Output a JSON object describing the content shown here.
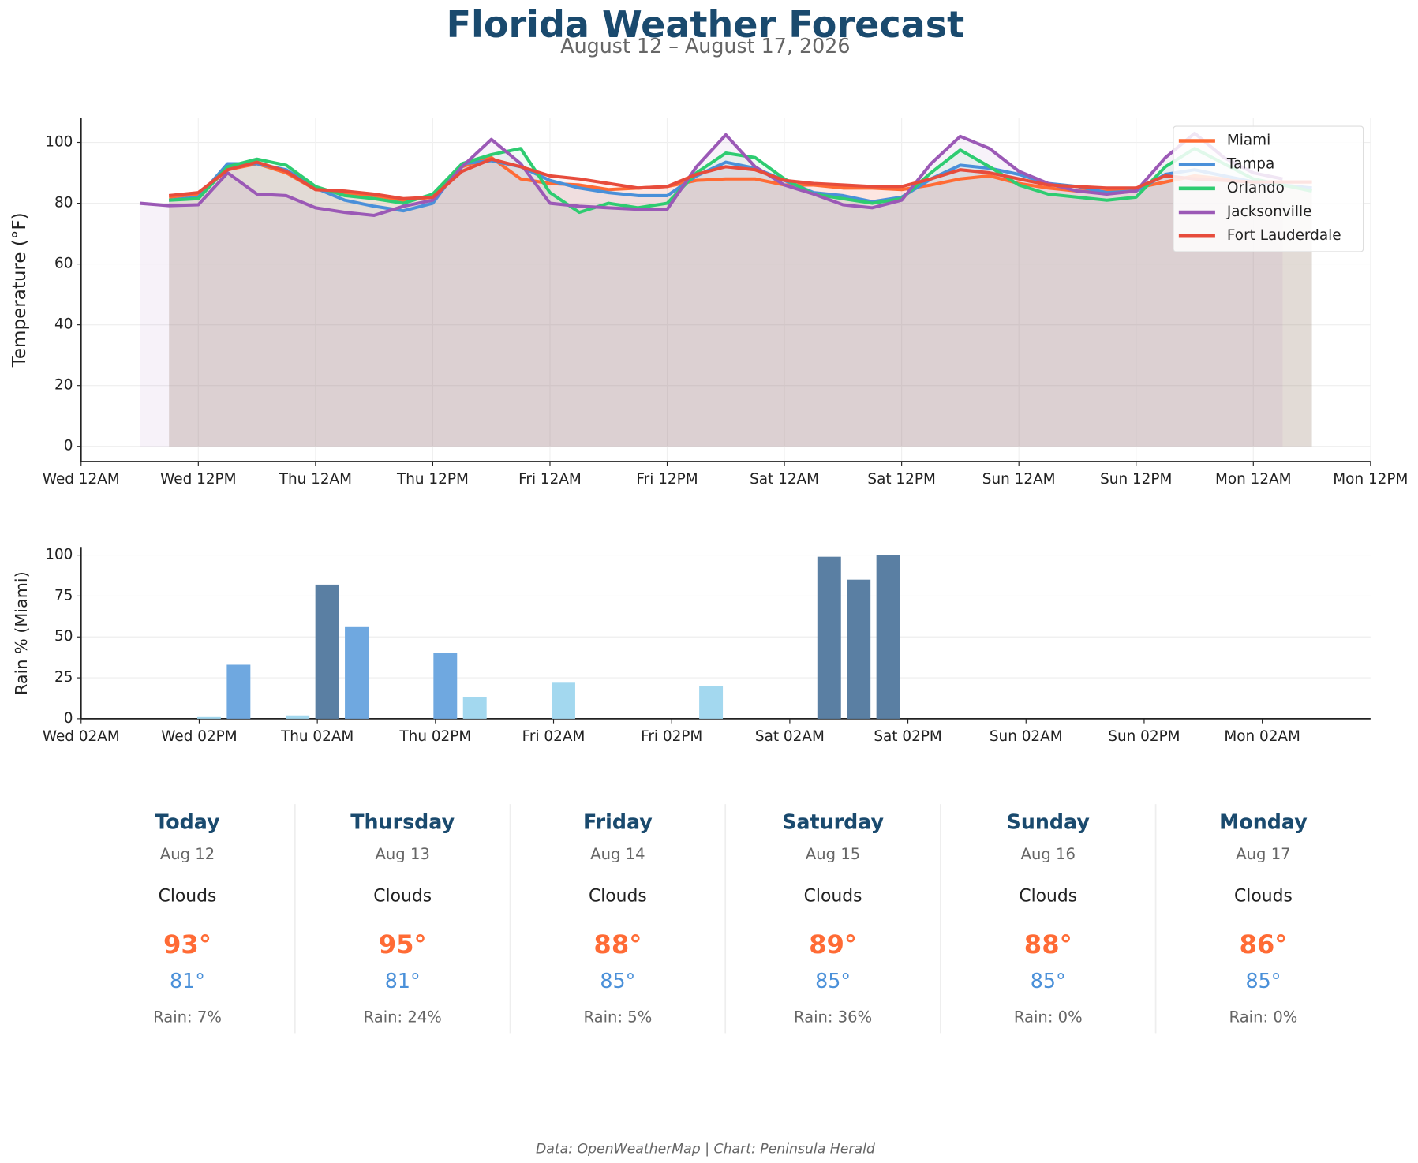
{
  "header": {
    "title": "Florida Weather Forecast",
    "subtitle": "August 12 – August 17, 2026"
  },
  "chart_data": [
    {
      "type": "line",
      "ylabel": "Temperature (°F)",
      "grid": true,
      "area": true,
      "legend": "upper right",
      "x": [
        6,
        9,
        12,
        15,
        18,
        21,
        24,
        27,
        30,
        33,
        36,
        39,
        42,
        45,
        48,
        51,
        54,
        57,
        60,
        63,
        66,
        69,
        72,
        75,
        78,
        81,
        84,
        87,
        90,
        93,
        96,
        99,
        102,
        105,
        108,
        111,
        114,
        117,
        120,
        123,
        126
      ],
      "xlim": [
        0,
        132
      ],
      "xticks": [
        {
          "value": 0,
          "label": "Wed 12AM"
        },
        {
          "value": 12,
          "label": "Wed 12PM"
        },
        {
          "value": 24,
          "label": "Thu 12AM"
        },
        {
          "value": 36,
          "label": "Thu 12PM"
        },
        {
          "value": 48,
          "label": "Fri 12AM"
        },
        {
          "value": 60,
          "label": "Fri 12PM"
        },
        {
          "value": 72,
          "label": "Sat 12AM"
        },
        {
          "value": 84,
          "label": "Sat 12PM"
        },
        {
          "value": 96,
          "label": "Sun 12AM"
        },
        {
          "value": 108,
          "label": "Sun 12PM"
        },
        {
          "value": 120,
          "label": "Mon 12AM"
        },
        {
          "value": 132,
          "label": "Mon 12PM"
        }
      ],
      "ylim": [
        -5,
        108
      ],
      "yticks": [
        0,
        20,
        40,
        60,
        80,
        100
      ],
      "series": [
        {
          "name": "Miami",
          "color": "#ff6b35",
          "values": [
            null,
            82,
            83,
            91,
            93,
            90,
            84.5,
            83.5,
            82.5,
            81,
            82,
            92,
            95,
            88,
            86.5,
            86,
            84.5,
            85,
            85.5,
            87.5,
            88,
            88,
            86,
            86,
            85,
            85,
            84.5,
            86,
            88,
            89,
            86.5,
            85,
            84,
            84,
            85,
            87,
            89,
            88,
            87,
            87,
            87
          ]
        },
        {
          "name": "Tampa",
          "color": "#4a90d9",
          "values": [
            null,
            81,
            82,
            93,
            93,
            91,
            85,
            81,
            79,
            77.5,
            80,
            93,
            94,
            92,
            87.5,
            85,
            83.5,
            82.5,
            82.5,
            89,
            93.5,
            91.5,
            87.5,
            83.5,
            82.5,
            80.5,
            82,
            88,
            92.5,
            91.5,
            89.5,
            86.5,
            85.5,
            83.5,
            84,
            89.5,
            91,
            89,
            87,
            86,
            85
          ]
        },
        {
          "name": "Orlando",
          "color": "#2ecc71",
          "values": [
            null,
            81,
            81.5,
            92,
            94.5,
            92.5,
            85.5,
            82.5,
            81.5,
            80,
            83,
            93,
            96,
            98,
            83.5,
            77,
            80,
            78.5,
            80,
            90,
            96.5,
            95,
            88,
            83,
            81.5,
            80,
            81.5,
            90,
            97.5,
            92,
            86,
            83,
            82,
            81,
            82,
            92,
            98,
            93,
            88,
            86,
            84
          ]
        },
        {
          "name": "Jacksonville",
          "color": "#9b59b6",
          "values": [
            80,
            79.2,
            79.5,
            90,
            83,
            82.5,
            78.5,
            77,
            76,
            79,
            81,
            92,
            101,
            93,
            80,
            79,
            78.5,
            78,
            78,
            92,
            102.5,
            92,
            86,
            83,
            79.5,
            78.5,
            81,
            93,
            102,
            98,
            90.5,
            86.5,
            84,
            83,
            84,
            95,
            103,
            95,
            90,
            88,
            null
          ]
        },
        {
          "name": "Fort Lauderdale",
          "color": "#e74c3c",
          "values": [
            null,
            82.5,
            83.5,
            91,
            93.5,
            90.5,
            84.5,
            84,
            83,
            81.5,
            82,
            90.5,
            94.5,
            92,
            89,
            88,
            86.5,
            85,
            85.5,
            89.5,
            92,
            91,
            87.5,
            86.5,
            86,
            85.5,
            85.5,
            88,
            91,
            90,
            88,
            86,
            85.5,
            85,
            85,
            89,
            88,
            87.5,
            87,
            87,
            87
          ]
        }
      ]
    },
    {
      "type": "bar",
      "ylabel": "Rain % (Miami)",
      "grid": true,
      "x": [
        9,
        12,
        15,
        18,
        21,
        24,
        27,
        30,
        33,
        36,
        39,
        42,
        45,
        48,
        51,
        54,
        57,
        60,
        63,
        66,
        69,
        72,
        75,
        78,
        81,
        84,
        87,
        90,
        93,
        96,
        99,
        102,
        105,
        108,
        111,
        114,
        117,
        120,
        123,
        126
      ],
      "values": [
        0,
        0,
        1,
        33,
        0,
        2,
        82,
        56,
        0,
        0,
        40,
        13,
        0,
        0,
        22,
        0,
        0,
        0,
        0,
        20,
        0,
        0,
        0,
        99,
        85,
        100,
        0,
        0,
        0,
        0,
        0,
        0,
        0,
        0,
        0,
        0,
        0,
        0,
        0,
        0
      ],
      "color_bins": [
        {
          "min": 70,
          "color": "#5a7fa3"
        },
        {
          "min": 30,
          "color": "#6fa8e0"
        },
        {
          "min": 0,
          "color": "#a3d8ef"
        }
      ],
      "xlim": [
        2,
        133
      ],
      "xticks": [
        {
          "value": 2,
          "label": "Wed 02AM"
        },
        {
          "value": 14,
          "label": "Wed 02PM"
        },
        {
          "value": 26,
          "label": "Thu 02AM"
        },
        {
          "value": 38,
          "label": "Thu 02PM"
        },
        {
          "value": 50,
          "label": "Fri 02AM"
        },
        {
          "value": 62,
          "label": "Fri 02PM"
        },
        {
          "value": 74,
          "label": "Sat 02AM"
        },
        {
          "value": 86,
          "label": "Sat 02PM"
        },
        {
          "value": 98,
          "label": "Sun 02AM"
        },
        {
          "value": 110,
          "label": "Sun 02PM"
        },
        {
          "value": 122,
          "label": "Mon 02AM"
        }
      ],
      "ylim": [
        0,
        105
      ],
      "yticks": [
        0,
        25,
        50,
        75,
        100
      ]
    }
  ],
  "forecast": [
    {
      "day": "Today",
      "date": "Aug 12",
      "condition": "Clouds",
      "high": "93°",
      "low": "81°",
      "rain": "Rain: 7%"
    },
    {
      "day": "Thursday",
      "date": "Aug 13",
      "condition": "Clouds",
      "high": "95°",
      "low": "81°",
      "rain": "Rain: 24%"
    },
    {
      "day": "Friday",
      "date": "Aug 14",
      "condition": "Clouds",
      "high": "88°",
      "low": "85°",
      "rain": "Rain: 5%"
    },
    {
      "day": "Saturday",
      "date": "Aug 15",
      "condition": "Clouds",
      "high": "89°",
      "low": "85°",
      "rain": "Rain: 36%"
    },
    {
      "day": "Sunday",
      "date": "Aug 16",
      "condition": "Clouds",
      "high": "88°",
      "low": "85°",
      "rain": "Rain: 0%"
    },
    {
      "day": "Monday",
      "date": "Aug 17",
      "condition": "Clouds",
      "high": "86°",
      "low": "85°",
      "rain": "Rain: 0%"
    }
  ],
  "footer": "Data: OpenWeatherMap | Chart: Peninsula Herald"
}
